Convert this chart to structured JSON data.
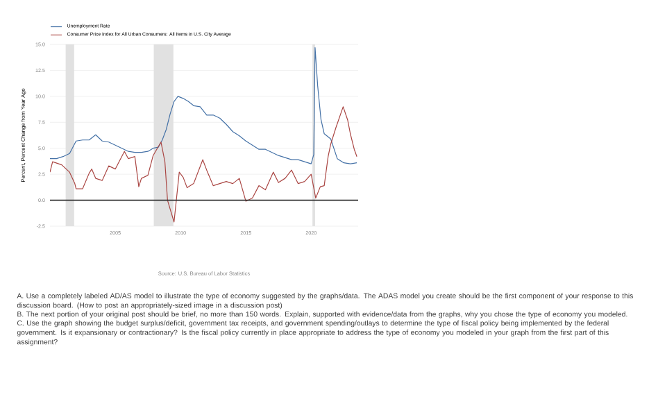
{
  "chart_data": {
    "type": "line",
    "ylabel": "Percent, Percent Change from Year Ago",
    "xlim": [
      2000,
      2023.6
    ],
    "ylim": [
      -2.5,
      15
    ],
    "xticks": [
      2005,
      2010,
      2015,
      2020
    ],
    "yticks": [
      {
        "value": -2.5,
        "label": "-2.5"
      },
      {
        "value": 0,
        "label": "0.0"
      },
      2.5,
      {
        "value": 5,
        "label": "5.0"
      },
      7.5,
      {
        "value": 10,
        "label": "10.0"
      },
      12.5,
      {
        "value": 15,
        "label": "15.0"
      }
    ],
    "grid": "y",
    "legend": "top left",
    "line_style": "solid",
    "marker": "none",
    "bands": [
      {
        "axis": "x",
        "from": 2001.2,
        "to": 2001.85,
        "color": "#e1e1e1"
      },
      {
        "axis": "x",
        "from": 2007.95,
        "to": 2009.45,
        "color": "#e1e1e1"
      },
      {
        "axis": "x",
        "from": 2020.1,
        "to": 2020.3,
        "color": "#e1e1e1"
      }
    ],
    "ref_lines": [
      {
        "axis": "y",
        "value": 0,
        "color": "#333333"
      }
    ],
    "series": [
      {
        "name": "Unemployment Rate",
        "color": "#4572a7",
        "x": [
          2000,
          2000.5,
          2001,
          2001.5,
          2002,
          2002.5,
          2003,
          2003.5,
          2004,
          2004.5,
          2005,
          2005.5,
          2006,
          2006.5,
          2007,
          2007.5,
          2007.9,
          2008.3,
          2008.6,
          2008.9,
          2009.2,
          2009.5,
          2009.8,
          2010.2,
          2010.6,
          2011,
          2011.5,
          2012,
          2012.5,
          2013,
          2013.5,
          2014,
          2014.5,
          2015,
          2015.5,
          2016,
          2016.5,
          2017,
          2017.5,
          2018,
          2018.5,
          2019,
          2019.5,
          2020.0,
          2020.2,
          2020.3,
          2020.5,
          2020.75,
          2021,
          2021.5,
          2022,
          2022.5,
          2023,
          2023.5
        ],
        "values": [
          4.0,
          4.0,
          4.2,
          4.5,
          5.7,
          5.8,
          5.8,
          6.3,
          5.7,
          5.6,
          5.3,
          5.0,
          4.7,
          4.6,
          4.6,
          4.7,
          5.0,
          5.1,
          5.8,
          6.8,
          8.3,
          9.5,
          10.0,
          9.8,
          9.5,
          9.1,
          9.0,
          8.2,
          8.2,
          7.9,
          7.3,
          6.6,
          6.2,
          5.7,
          5.3,
          4.9,
          4.9,
          4.6,
          4.3,
          4.1,
          3.9,
          3.9,
          3.7,
          3.5,
          4.4,
          14.7,
          11.0,
          7.8,
          6.4,
          5.9,
          4.0,
          3.6,
          3.5,
          3.6
        ]
      },
      {
        "name": "Consumer Price Index for All Urban Consumers: All Items in U.S. City Average",
        "color": "#aa4643",
        "x": [
          2000,
          2000.2,
          2000.9,
          2001.5,
          2001.9,
          2002.0,
          2002.5,
          2003,
          2003.2,
          2003.5,
          2004,
          2004.5,
          2005,
          2005.7,
          2006,
          2006.5,
          2006.8,
          2007,
          2007.5,
          2007.9,
          2008.5,
          2008.8,
          2009,
          2009.5,
          2009.9,
          2010.2,
          2010.5,
          2011,
          2011.7,
          2012,
          2012.5,
          2013,
          2013.5,
          2014,
          2014.5,
          2015,
          2015.5,
          2016,
          2016.5,
          2017.1,
          2017.5,
          2018,
          2018.5,
          2019,
          2019.5,
          2020,
          2020.35,
          2020.7,
          2021,
          2021.3,
          2021.5,
          2021.9,
          2022.45,
          2022.8,
          2023,
          2023.3,
          2023.5
        ],
        "values": [
          2.7,
          3.7,
          3.4,
          2.7,
          1.6,
          1.1,
          1.1,
          2.6,
          3.0,
          2.1,
          1.9,
          3.3,
          3.0,
          4.7,
          4.0,
          4.2,
          1.3,
          2.1,
          2.4,
          4.3,
          5.6,
          3.7,
          0.0,
          -2.1,
          2.7,
          2.2,
          1.2,
          1.6,
          3.9,
          2.9,
          1.4,
          1.6,
          1.8,
          1.6,
          2.1,
          -0.1,
          0.2,
          1.4,
          1.0,
          2.7,
          1.7,
          2.1,
          2.9,
          1.6,
          1.8,
          2.5,
          0.2,
          1.3,
          1.4,
          4.2,
          5.4,
          7.0,
          9.0,
          7.7,
          6.4,
          4.9,
          4.2
        ]
      }
    ],
    "annotations": [
      "Source: U.S. Bureau of Labor Statistics",
      "A. Use a completely labeled AD/AS model to illustrate the type of economy suggested by the graphs/data. The ADAS model you create should be the first component of your response to this discussion board. (How to post an appropriately-sized image in a discussion post)",
      "B. The next portion of your original post should be brief, no more than 150 words. Explain, supported with evidence/data from the graphs, why you chose the type of economy you modeled.",
      "C. Use the graph showing the budget surplus/deficit, government tax receipts, and government spending/outlays to determine the type of fiscal policy being implemented by the federal government. Is it expansionary or contractionary? Is the fiscal policy currently in place appropriate to address the type of economy you modeled in your graph from the first part of this assignment?"
    ]
  }
}
